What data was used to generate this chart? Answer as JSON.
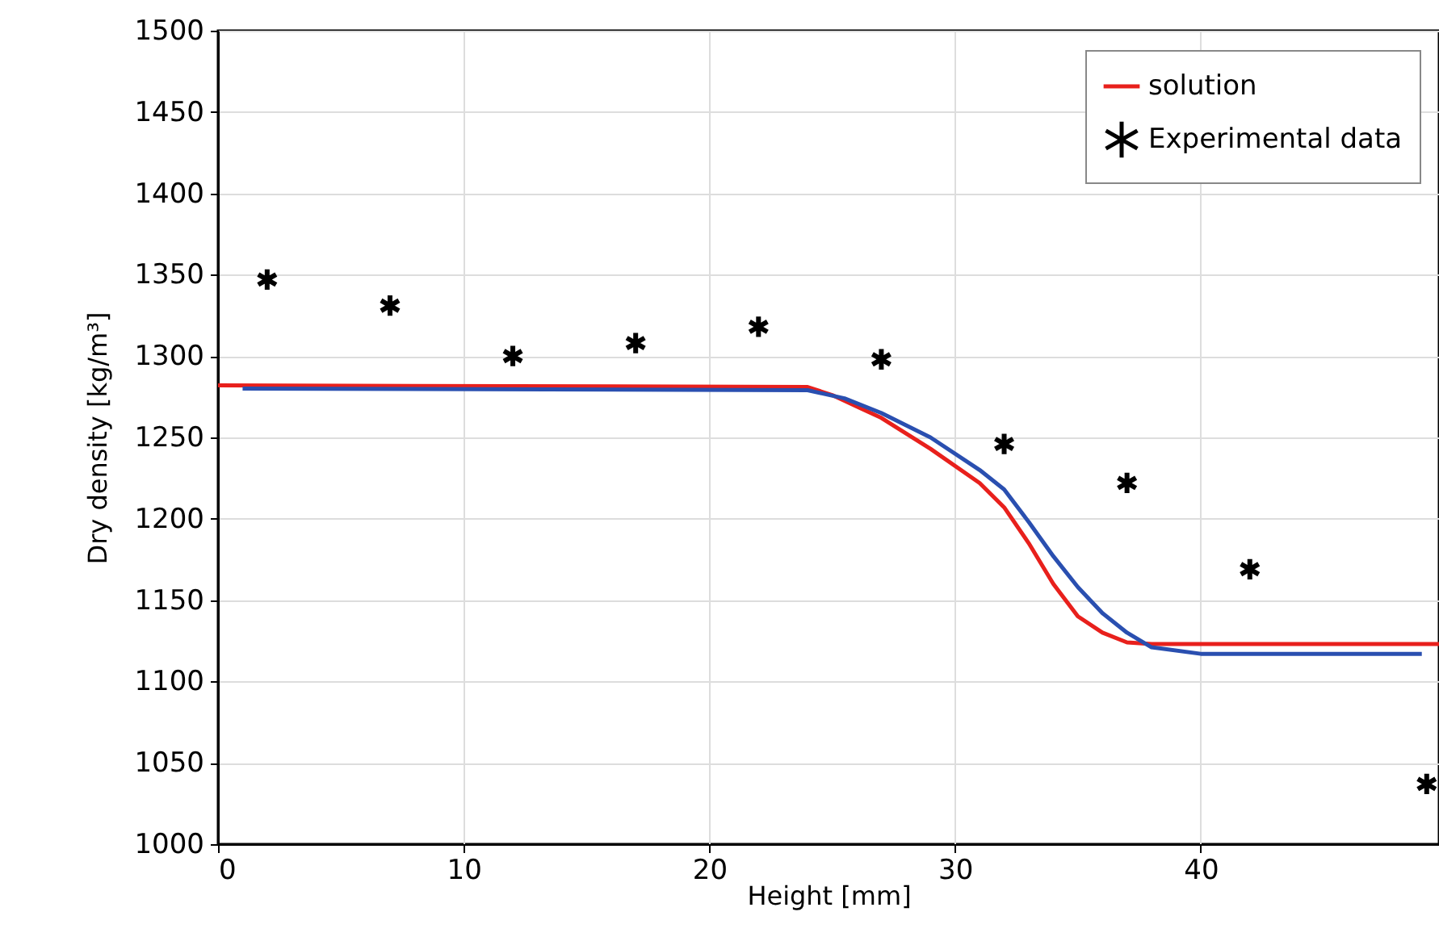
{
  "chart_data": {
    "type": "line",
    "xlabel": "Height [mm]",
    "ylabel": "Dry density [kg/m³]",
    "xlim": [
      0,
      49.7
    ],
    "xticks": [
      0,
      10,
      20,
      30,
      40
    ],
    "ylim": [
      1000,
      1500
    ],
    "yticks": [
      1000,
      1050,
      1100,
      1150,
      1200,
      1250,
      1300,
      1350,
      1400,
      1450,
      1500
    ],
    "grid": true,
    "legend": "top right",
    "series": [
      {
        "name": "solution",
        "color": "#e8201c",
        "x": [
          0,
          24,
          25,
          27,
          29,
          31,
          32,
          33,
          34,
          35,
          36,
          37,
          38,
          49.7
        ],
        "values": [
          1282,
          1281,
          1276,
          1262,
          1243,
          1222,
          1207,
          1185,
          1160,
          1140,
          1130,
          1124,
          1123,
          1123
        ]
      },
      {
        "color": "#2a4fb0",
        "x": [
          1,
          24,
          25.5,
          27,
          29,
          31,
          32,
          33,
          34,
          35,
          36,
          37,
          38,
          40,
          49
        ],
        "values": [
          1280,
          1279,
          1274,
          1265,
          1250,
          1230,
          1218,
          1198,
          1177,
          1158,
          1142,
          1130,
          1121,
          1117,
          1117
        ]
      },
      {
        "name": "Experimental data",
        "color": "#000000",
        "type": "scatter",
        "marker": "cross",
        "x": [
          2,
          7,
          12,
          17,
          22,
          27,
          32,
          37,
          42,
          49.2
        ],
        "values": [
          1347,
          1331,
          1300,
          1308,
          1318,
          1298,
          1246,
          1222,
          1169,
          1037
        ]
      }
    ]
  }
}
